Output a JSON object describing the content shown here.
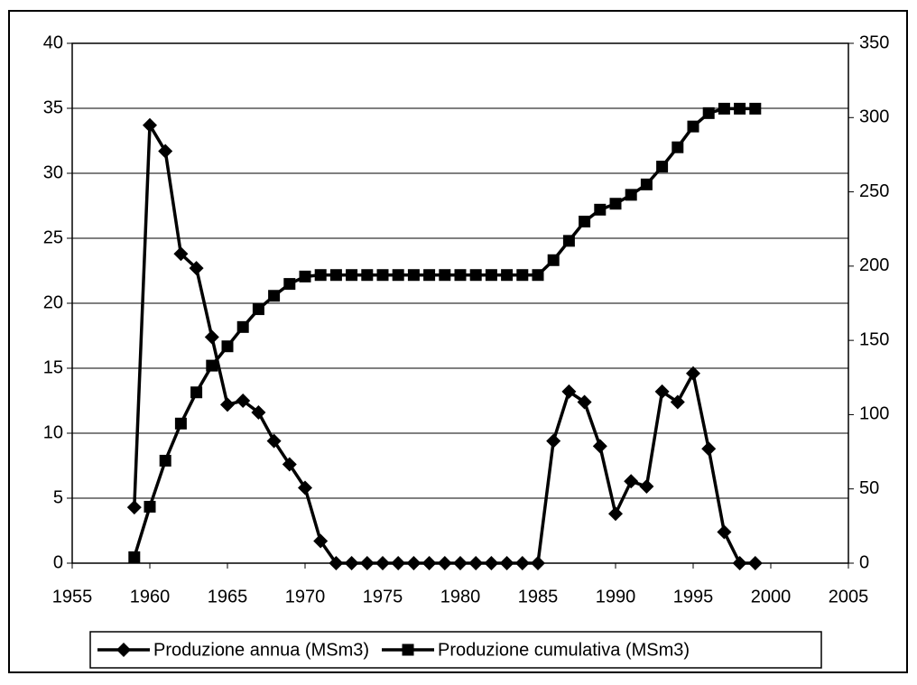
{
  "chart_data": {
    "type": "line",
    "x": [
      1959,
      1960,
      1961,
      1962,
      1963,
      1964,
      1965,
      1966,
      1967,
      1968,
      1969,
      1970,
      1971,
      1972,
      1973,
      1974,
      1975,
      1976,
      1977,
      1978,
      1979,
      1980,
      1981,
      1982,
      1983,
      1984,
      1985,
      1986,
      1987,
      1988,
      1989,
      1990,
      1991,
      1992,
      1993,
      1994,
      1995,
      1996,
      1997,
      1998,
      1999
    ],
    "series": [
      {
        "name": "Produzione annua (MSm3)",
        "color": "#000000",
        "marker": "diamond",
        "values": [
          4.3,
          33.7,
          31.7,
          23.8,
          22.7,
          17.4,
          12.2,
          12.5,
          11.6,
          9.4,
          7.6,
          5.8,
          1.7,
          0,
          0,
          0,
          0,
          0,
          0,
          0,
          0,
          0,
          0,
          0,
          0,
          0,
          0,
          9.4,
          13.2,
          12.4,
          9.0,
          3.8,
          6.3,
          5.9,
          13.2,
          12.4,
          14.6,
          8.8,
          2.4,
          0,
          0
        ]
      },
      {
        "name": "Produzione cumulativa (MSm3)",
        "color": "#000000",
        "marker": "square",
        "axis": "y2",
        "values": [
          4,
          38,
          69,
          94,
          115,
          133,
          146,
          159,
          171,
          180,
          188,
          193,
          194,
          194,
          194,
          194,
          194,
          194,
          194,
          194,
          194,
          194,
          194,
          194,
          194,
          194,
          194,
          204,
          217,
          230,
          238,
          242,
          248,
          255,
          267,
          280,
          294,
          303,
          306,
          306,
          306
        ]
      }
    ],
    "xlim": [
      1955,
      2005
    ],
    "xticks": [
      1955,
      1960,
      1965,
      1970,
      1975,
      1980,
      1985,
      1990,
      1995,
      2000,
      2005
    ],
    "ylim": [
      0,
      40
    ],
    "yticks": [
      0,
      5,
      10,
      15,
      20,
      25,
      30,
      35,
      40
    ],
    "y2lim": [
      0,
      350
    ],
    "y2ticks": [
      0,
      50,
      100,
      150,
      200,
      250,
      300,
      350
    ],
    "grid": true,
    "legend": "bottom"
  }
}
